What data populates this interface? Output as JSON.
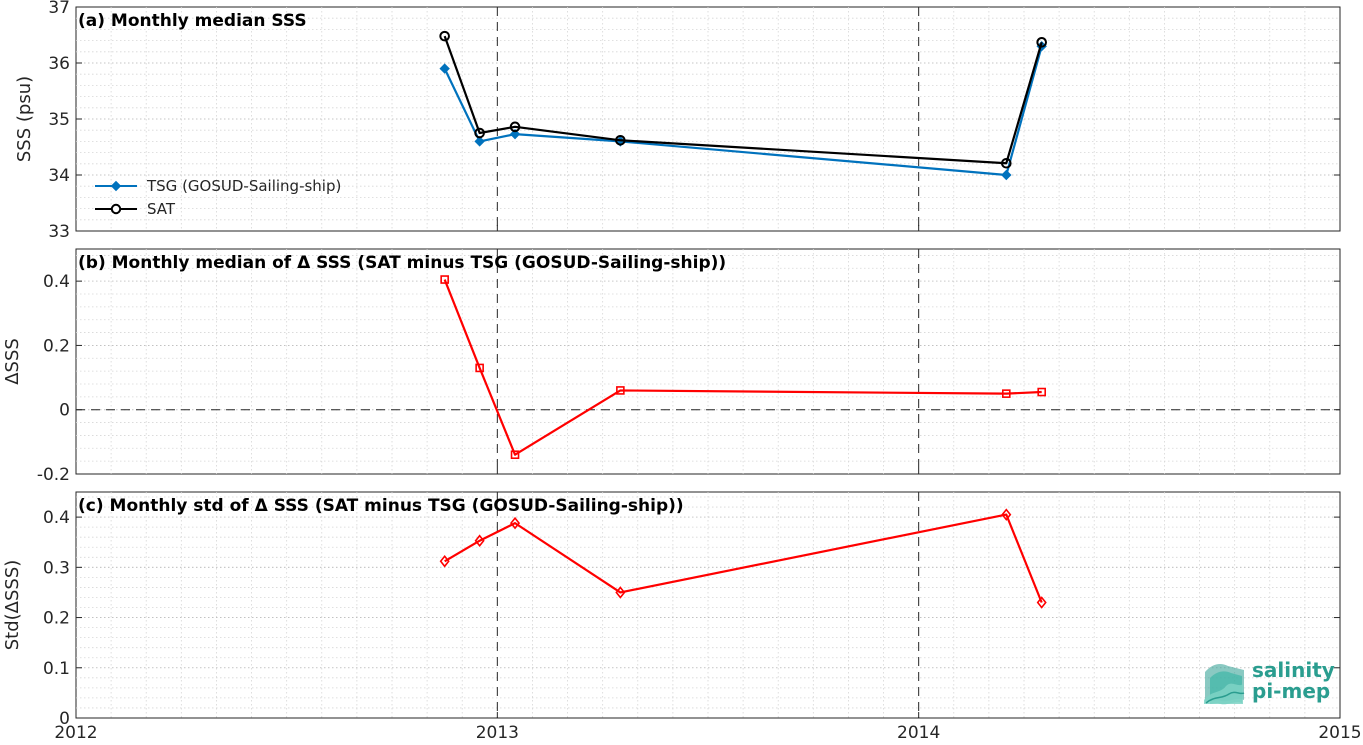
{
  "x_ticks": [
    "2012",
    "2013",
    "2014",
    "2015"
  ],
  "colors": {
    "tsg": "#0072bd",
    "sat": "#000000",
    "delta": "#ff0000",
    "logo": "#2a9d8f"
  },
  "logo": {
    "line1": "salinity",
    "line2": "pi-mep"
  },
  "chart_data": [
    {
      "type": "line",
      "title": "(a) Monthly median SSS",
      "ylabel": "SSS (psu)",
      "xlim": [
        2012,
        2015
      ],
      "ylim": [
        33,
        37
      ],
      "yticks": [
        33,
        34,
        35,
        36,
        37
      ],
      "grid": true,
      "legend_placement": "bottom-left",
      "series": [
        {
          "name": "TSG (GOSUD-Sailing-ship)",
          "marker": "diamond-filled",
          "x": [
            2012.875,
            2012.958,
            2013.042,
            2013.292,
            2014.208,
            2014.292
          ],
          "y": [
            35.9,
            34.6,
            34.73,
            34.6,
            34.0,
            36.3
          ]
        },
        {
          "name": "SAT",
          "marker": "circle-open",
          "x": [
            2012.875,
            2012.958,
            2013.042,
            2013.292,
            2014.208,
            2014.292
          ],
          "y": [
            36.48,
            34.75,
            34.86,
            34.62,
            34.21,
            36.37
          ]
        }
      ]
    },
    {
      "type": "line",
      "title": "(b) Monthly median of Δ SSS (SAT minus TSG (GOSUD-Sailing-ship))",
      "ylabel": "ΔSSS",
      "xlim": [
        2012,
        2015
      ],
      "ylim": [
        -0.2,
        0.5
      ],
      "yticks": [
        -0.2,
        0,
        0.2,
        0.4
      ],
      "ytick_labels": [
        "-0.2",
        "0",
        "0.2",
        "0.4"
      ],
      "grid": true,
      "zero_line": true,
      "series": [
        {
          "marker": "square-open",
          "x": [
            2012.875,
            2012.958,
            2013.042,
            2013.292,
            2014.208,
            2014.292
          ],
          "y": [
            0.405,
            0.13,
            -0.14,
            0.06,
            0.05,
            0.055
          ]
        }
      ]
    },
    {
      "type": "line",
      "title": "(c) Monthly std of Δ SSS (SAT minus TSG (GOSUD-Sailing-ship))",
      "ylabel": "Std(ΔSSS)",
      "xlim": [
        2012,
        2015
      ],
      "ylim": [
        0,
        0.45
      ],
      "yticks": [
        0,
        0.1,
        0.2,
        0.3,
        0.4
      ],
      "ytick_labels": [
        "0",
        "0.1",
        "0.2",
        "0.3",
        "0.4"
      ],
      "grid": true,
      "series": [
        {
          "marker": "diamond-open",
          "x": [
            2012.875,
            2012.958,
            2013.042,
            2013.292,
            2014.208,
            2014.292
          ],
          "y": [
            0.312,
            0.353,
            0.388,
            0.25,
            0.405,
            0.23
          ]
        }
      ]
    }
  ]
}
